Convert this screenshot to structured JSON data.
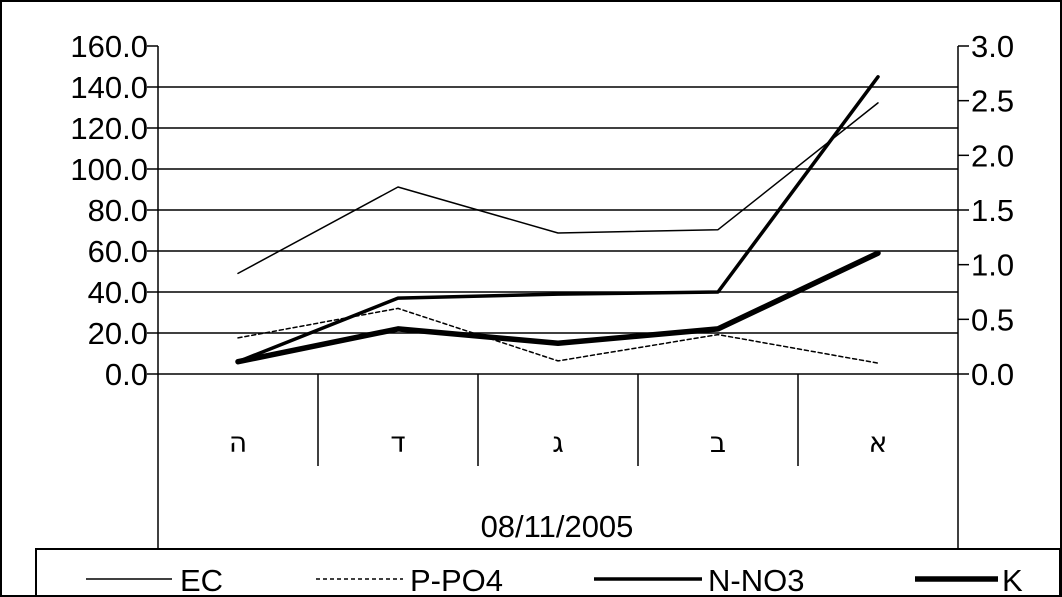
{
  "chart_data": {
    "type": "line",
    "categories": [
      "ה",
      "ד",
      "ג",
      "ב",
      "א"
    ],
    "xlabel": "08/11/2005",
    "y_left": {
      "range": [
        0,
        160
      ],
      "ticks": [
        "160.0",
        "140.0",
        "120.0",
        "100.0",
        "80.0",
        "60.0",
        "40.0",
        "20.0",
        "0.0"
      ]
    },
    "y_right": {
      "range": [
        0,
        3
      ],
      "ticks": [
        "3.0",
        "2.5",
        "2.0",
        "1.5",
        "1.0",
        "0.5",
        "0.0"
      ]
    },
    "grid": true,
    "legend_position": "bottom",
    "series": [
      {
        "name": "EC",
        "axis": "right",
        "values": [
          0.92,
          1.71,
          1.29,
          1.32,
          2.48
        ],
        "style": "thin"
      },
      {
        "name": "P-PO4",
        "axis": "right",
        "values": [
          0.33,
          0.6,
          0.12,
          0.36,
          0.1
        ],
        "style": "dotted"
      },
      {
        "name": "N-NO3",
        "axis": "left",
        "values": [
          6,
          37,
          39,
          40,
          145
        ],
        "style": "medium"
      },
      {
        "name": "K",
        "axis": "left",
        "values": [
          6,
          22,
          15,
          22,
          59
        ],
        "style": "thick"
      }
    ]
  }
}
